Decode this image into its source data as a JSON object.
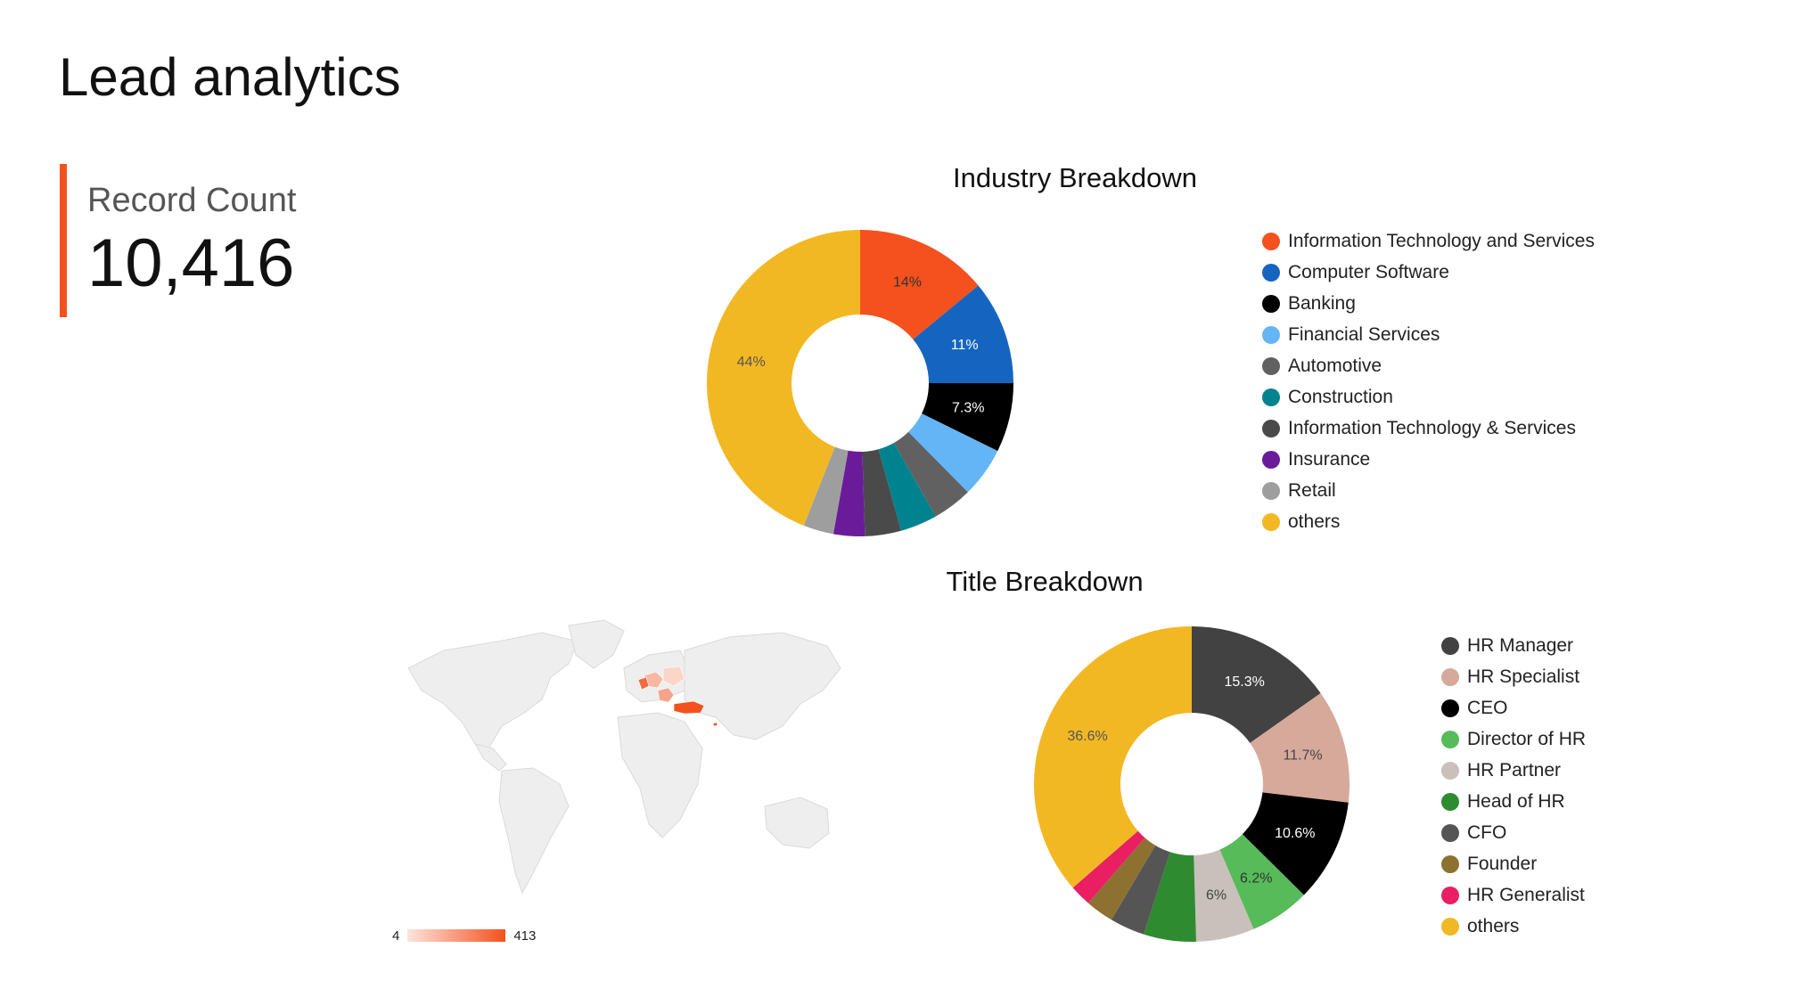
{
  "page": {
    "title": "Lead analytics"
  },
  "scorecard": {
    "label": "Record Count",
    "value": "10,416"
  },
  "chart_data": [
    {
      "type": "pie",
      "subtype": "donut",
      "title": "Industry Breakdown",
      "legend_position": "right",
      "slices": [
        {
          "label": "Information Technology and Services",
          "value": 14,
          "display": "14%",
          "color": "#f4511e",
          "label_color": "#333333"
        },
        {
          "label": "Computer Software",
          "value": 11,
          "display": "11%",
          "color": "#1565c0",
          "label_color": "#ffffff"
        },
        {
          "label": "Banking",
          "value": 7.3,
          "display": "7.3%",
          "color": "#000000",
          "label_color": "#ffffff"
        },
        {
          "label": "Financial Services",
          "value": 5.3,
          "display": "",
          "color": "#64b5f6",
          "label_color": "#333333"
        },
        {
          "label": "Automotive",
          "value": 4.2,
          "display": "",
          "color": "#616161",
          "label_color": "#ffffff"
        },
        {
          "label": "Construction",
          "value": 3.9,
          "display": "",
          "color": "#00838f",
          "label_color": "#ffffff"
        },
        {
          "label": "Information Technology & Services",
          "value": 3.8,
          "display": "",
          "color": "#4a4a4a",
          "label_color": "#ffffff"
        },
        {
          "label": "Insurance",
          "value": 3.3,
          "display": "",
          "color": "#6a1b9a",
          "label_color": "#ffffff"
        },
        {
          "label": "Retail",
          "value": 3.2,
          "display": "",
          "color": "#9e9e9e",
          "label_color": "#333333"
        },
        {
          "label": "others",
          "value": 44,
          "display": "44%",
          "color": "#f2b824",
          "label_color": "#555555"
        }
      ]
    },
    {
      "type": "pie",
      "subtype": "donut",
      "title": "Title Breakdown",
      "legend_position": "right",
      "slices": [
        {
          "label": "HR Manager",
          "value": 15.3,
          "display": "15.3%",
          "color": "#424242",
          "label_color": "#ffffff"
        },
        {
          "label": "HR Specialist",
          "value": 11.7,
          "display": "11.7%",
          "color": "#d7a99a",
          "label_color": "#444444"
        },
        {
          "label": "CEO",
          "value": 10.6,
          "display": "10.6%",
          "color": "#000000",
          "label_color": "#ffffff"
        },
        {
          "label": "Director of HR",
          "value": 6.2,
          "display": "6.2%",
          "color": "#57bb5a",
          "label_color": "#333333"
        },
        {
          "label": "HR Partner",
          "value": 6,
          "display": "6%",
          "color": "#c9c0bb",
          "label_color": "#444444"
        },
        {
          "label": "Head of HR",
          "value": 5.4,
          "display": "",
          "color": "#2e8b30",
          "label_color": "#ffffff"
        },
        {
          "label": "CFO",
          "value": 3.6,
          "display": "",
          "color": "#555555",
          "label_color": "#ffffff"
        },
        {
          "label": "Founder",
          "value": 2.9,
          "display": "",
          "color": "#8d7130",
          "label_color": "#ffffff"
        },
        {
          "label": "HR Generalist",
          "value": 2.2,
          "display": "",
          "color": "#e91e63",
          "label_color": "#ffffff"
        },
        {
          "label": "others",
          "value": 36.6,
          "display": "36.6%",
          "color": "#f2b824",
          "label_color": "#555555"
        }
      ]
    },
    {
      "type": "geo",
      "title": "",
      "color_scale": {
        "min": "4",
        "max": "413",
        "min_color": "#fde4dc",
        "max_color": "#f4511e"
      },
      "base_color": "#eeeeee"
    }
  ]
}
